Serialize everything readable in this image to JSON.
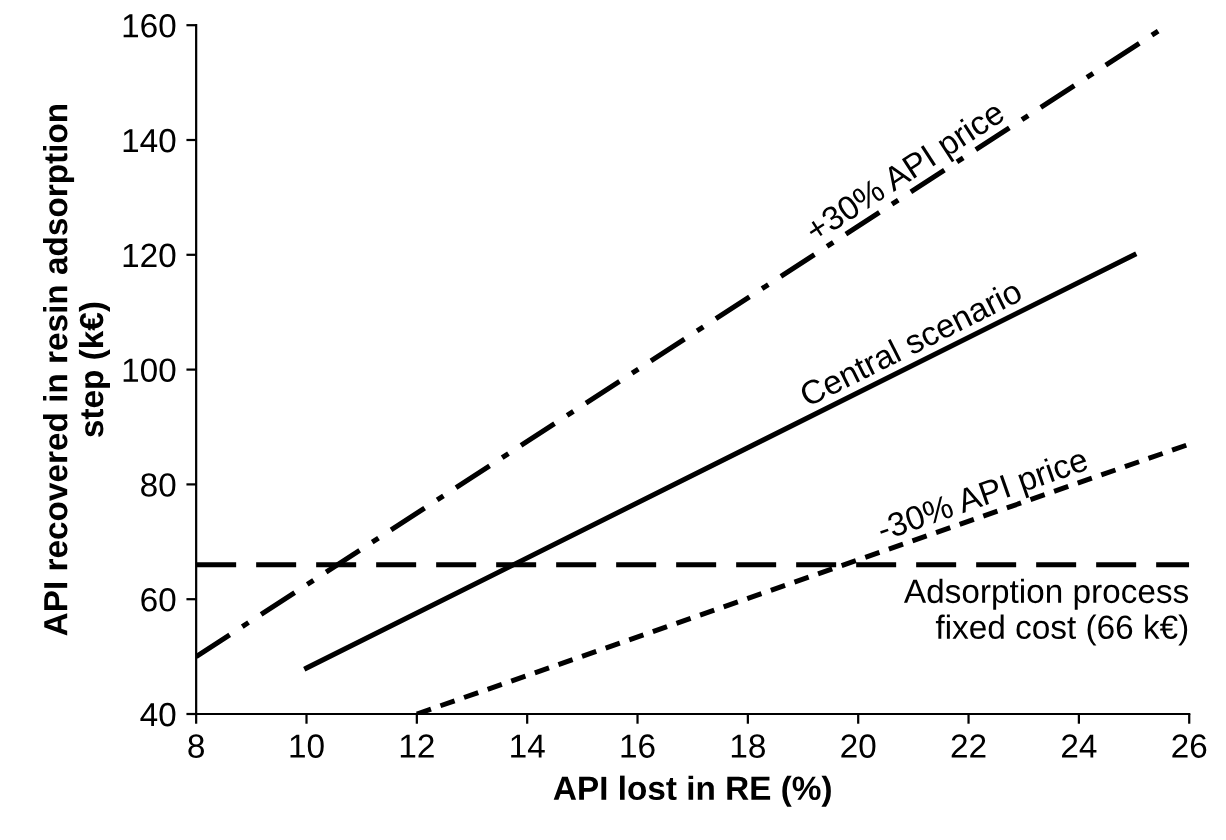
{
  "chart_data": {
    "type": "line",
    "xlabel": "API lost in RE (%)",
    "ylabel": "API recovered in resin adsorption\nstep (k€)",
    "series": [
      {
        "name": "+30% API price",
        "color": "#000000",
        "line_style": "dashdot",
        "x": [
          8,
          25.6
        ],
        "values": [
          50,
          160
        ]
      },
      {
        "name": "Central scenario",
        "color": "#000000",
        "line_style": "solid",
        "x": [
          10,
          25
        ],
        "values": [
          48,
          120
        ]
      },
      {
        "name": "-30% API price",
        "color": "#000000",
        "line_style": "dotted",
        "x": [
          12,
          26
        ],
        "values": [
          40,
          87
        ]
      }
    ],
    "ref_lines": [
      {
        "axis": "y",
        "value": 66,
        "label": "Adsorption process\nfixed cost (66 k€)",
        "color": "#000000",
        "line_style": "dashed"
      }
    ],
    "xlim": [
      8,
      26
    ],
    "ylim": [
      40,
      160
    ],
    "xticks": [
      8,
      10,
      12,
      14,
      16,
      18,
      20,
      22,
      24,
      26
    ],
    "yticks": [
      40,
      60,
      80,
      100,
      120,
      140,
      160
    ],
    "grid": false,
    "legend": false,
    "marker": "none"
  }
}
